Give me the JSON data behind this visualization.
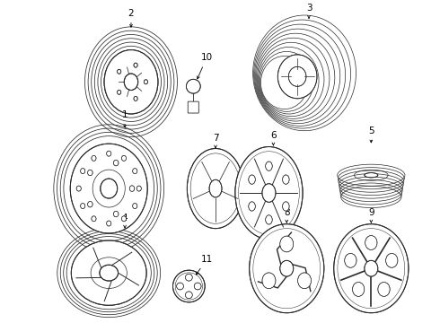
{
  "background_color": "#ffffff",
  "line_color": "#2a2a2a",
  "text_color": "#000000",
  "figsize": [
    4.9,
    3.6
  ],
  "dpi": 100
}
